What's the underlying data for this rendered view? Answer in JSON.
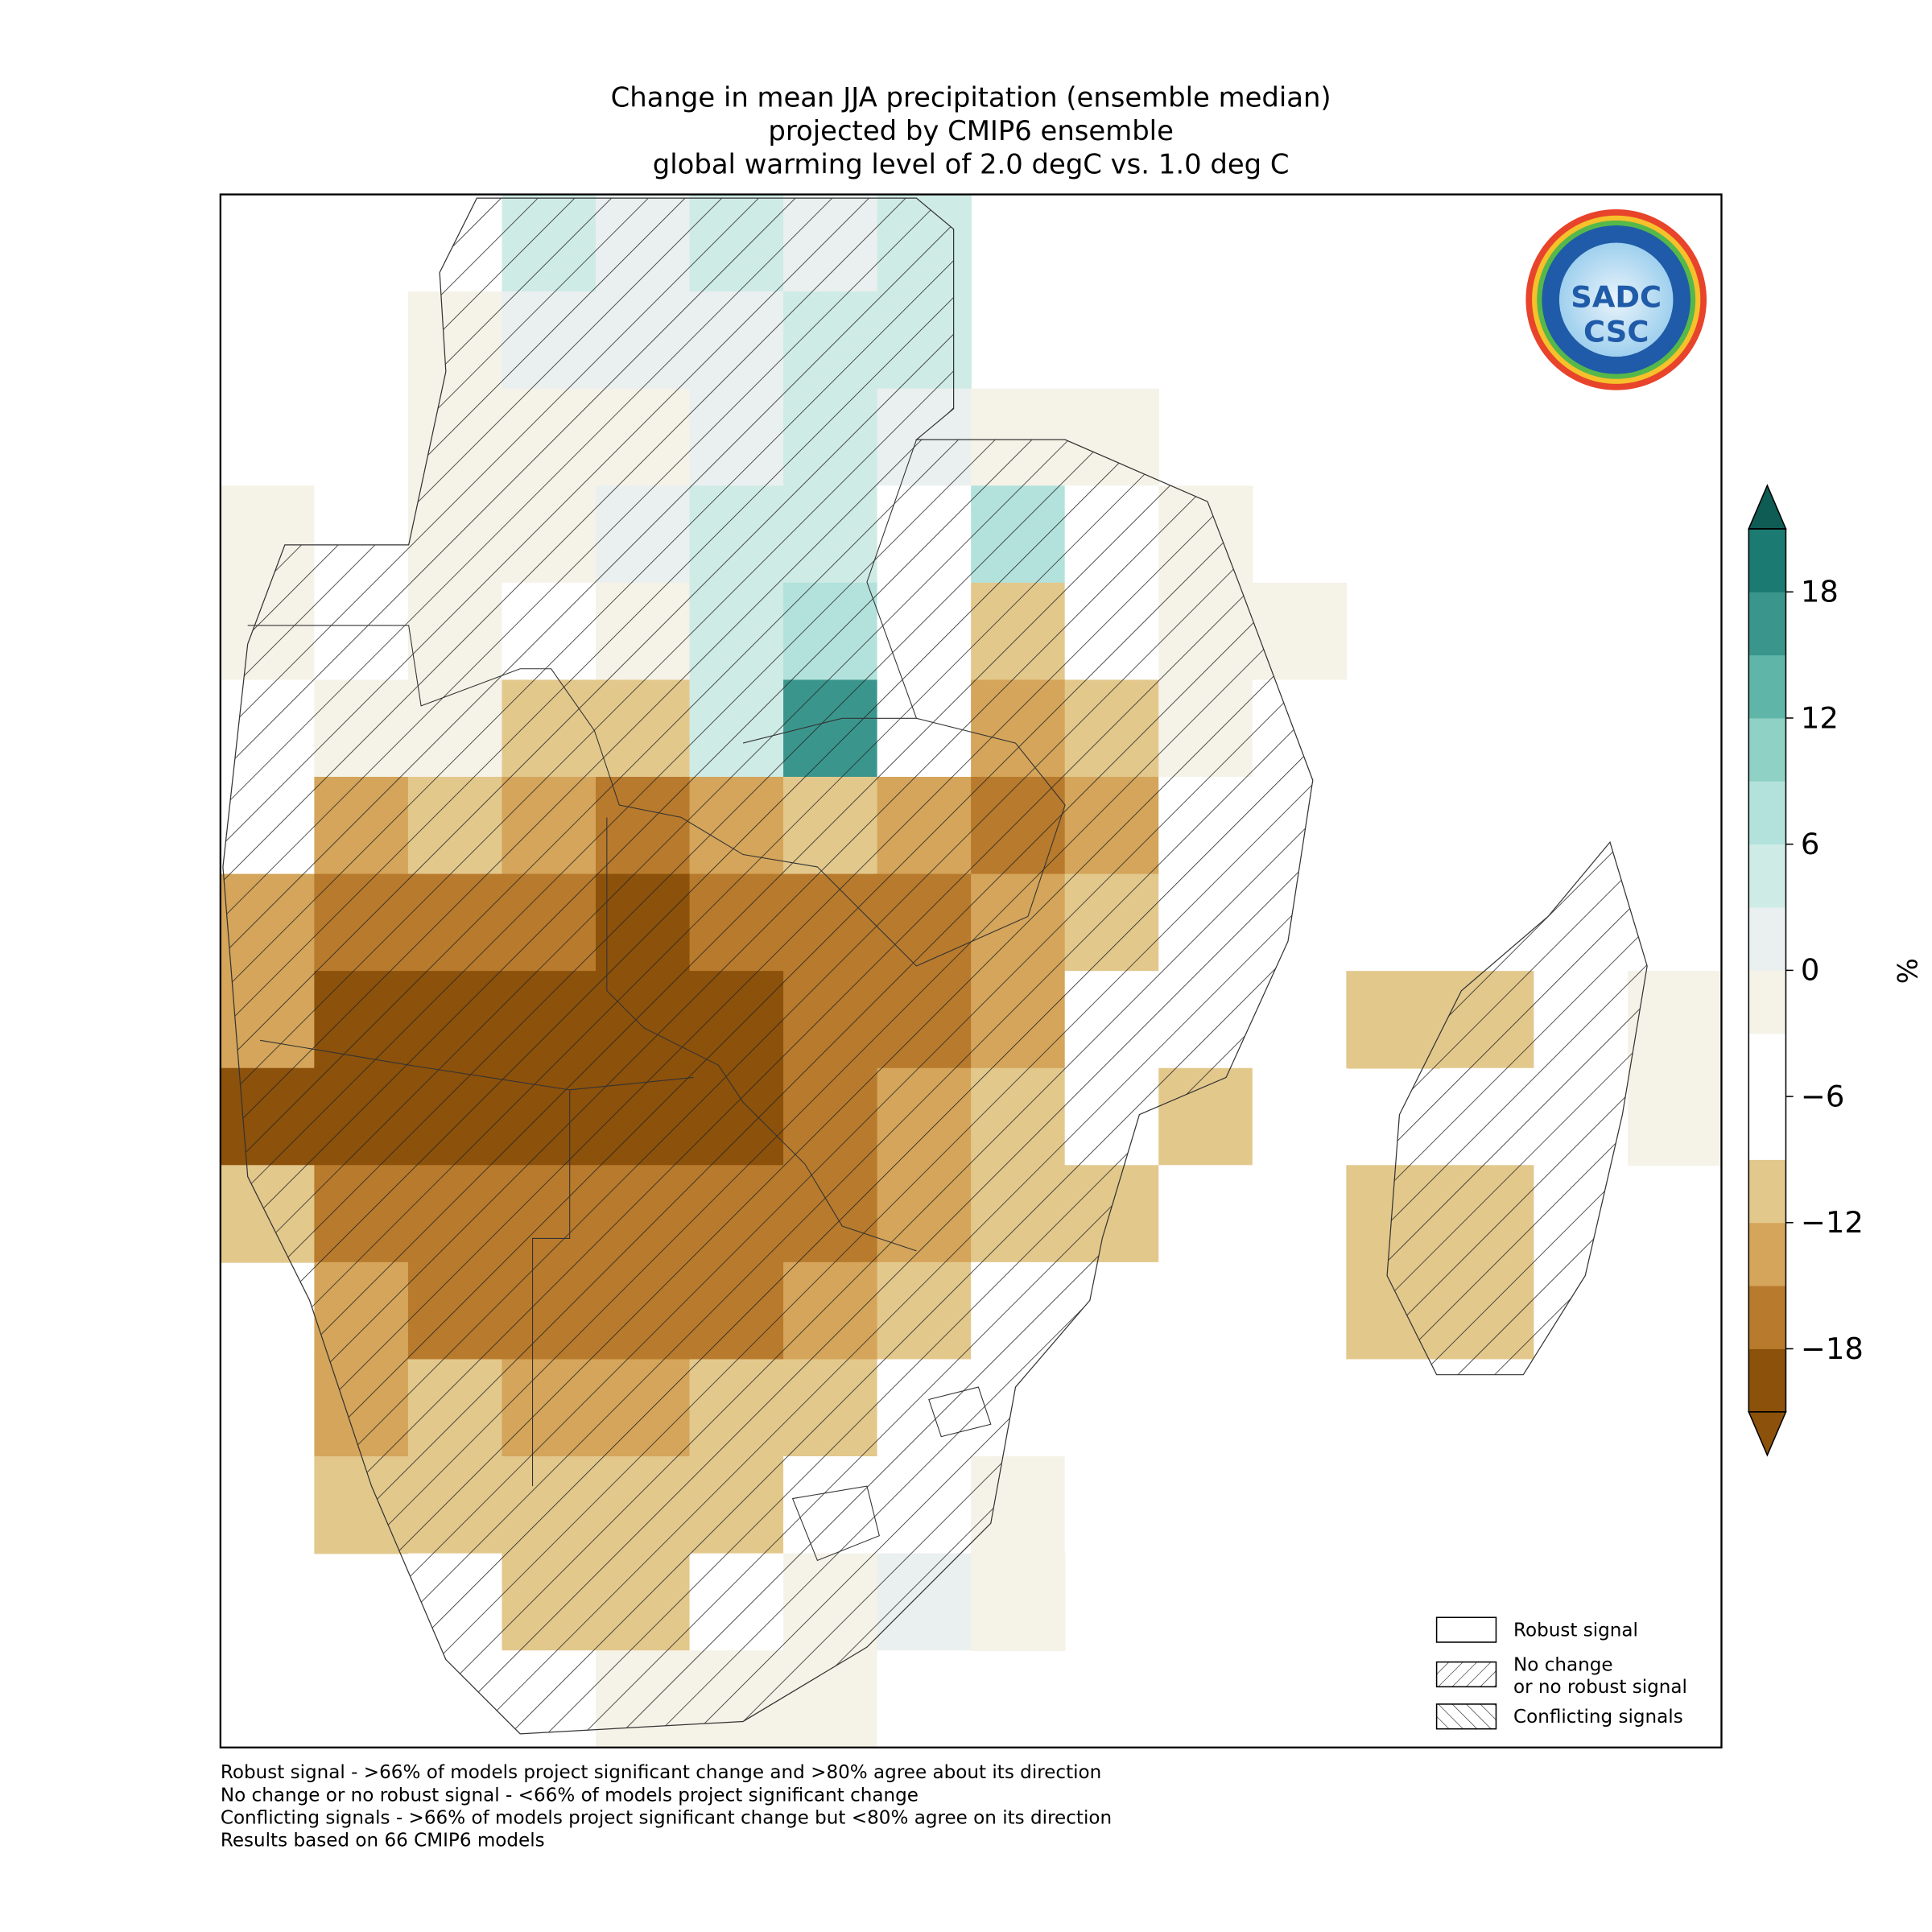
{
  "chart_data": {
    "type": "heatmap",
    "title": [
      "Change in mean JJA precipitation (ensemble median)",
      "projected by CMIP6 ensemble",
      "global warming level of 2.0 degC vs. 1.0 deg C"
    ],
    "values": [
      [
        null,
        null,
        null,
        3,
        1,
        3,
        2,
        4,
        null,
        null,
        null,
        null,
        null,
        null,
        null,
        null
      ],
      [
        null,
        null,
        -1,
        2,
        1,
        2,
        3,
        4,
        null,
        null,
        null,
        null,
        null,
        null,
        null,
        null
      ],
      [
        null,
        null,
        -2,
        -1,
        -2,
        2,
        3,
        1,
        -3,
        -3,
        null,
        null,
        null,
        null,
        null,
        null
      ],
      [
        -2,
        -4,
        -1,
        -2,
        2,
        4,
        3,
        -4,
        6,
        -4,
        -2,
        null,
        null,
        null,
        null,
        null
      ],
      [
        -2,
        -4,
        -3,
        -4,
        -1,
        5,
        6,
        -4,
        -12,
        -4,
        -2,
        -3,
        null,
        null,
        null,
        null
      ],
      [
        -4,
        -3,
        -3,
        -12,
        -10,
        3,
        15,
        -4,
        -13,
        -12,
        -2,
        -4,
        null,
        null,
        null,
        null
      ],
      [
        -4,
        -13,
        -12,
        -15,
        -16,
        -15,
        -10,
        -14,
        -18,
        -13,
        -4,
        -4,
        null,
        null,
        null,
        null
      ],
      [
        -13,
        -16,
        -18,
        -17,
        -19,
        -18,
        -16,
        -17,
        -15,
        -12,
        -4,
        -4,
        null,
        null,
        -4,
        null
      ],
      [
        -15,
        -19,
        -19,
        -20,
        -20,
        -19,
        -18,
        -18,
        -14,
        -4,
        -4,
        -4,
        -12,
        -12,
        -4,
        -2
      ],
      [
        -19,
        -20,
        -20,
        -20,
        -19,
        -20,
        -18,
        -15,
        -12,
        -4,
        -12,
        -4,
        null,
        -4,
        -4,
        -2
      ],
      [
        -12,
        -18,
        -17,
        -16,
        -18,
        -18,
        -16,
        -13,
        -12,
        -12,
        -4,
        null,
        -12,
        -12,
        -4,
        null
      ],
      [
        null,
        -13,
        -17,
        -18,
        -16,
        -17,
        -14,
        -11,
        -4,
        -4,
        -4,
        null,
        -12,
        -12,
        -4,
        null
      ],
      [
        null,
        -13,
        -12,
        -13,
        -14,
        -12,
        -12,
        -4,
        -4,
        -4,
        null,
        null,
        -4,
        -4,
        null,
        null
      ],
      [
        null,
        -12,
        -10,
        -12,
        -10,
        -10,
        -4,
        -4,
        -3,
        -4,
        null,
        null,
        null,
        null,
        null,
        null
      ],
      [
        null,
        null,
        -9,
        -10,
        -11,
        -4,
        -2,
        1,
        -3,
        null,
        null,
        null,
        null,
        null,
        null,
        null
      ],
      [
        null,
        null,
        -4,
        -4,
        -3,
        -3,
        -2,
        -4,
        null,
        null,
        null,
        null,
        null,
        null,
        null,
        null
      ]
    ],
    "colorbar": {
      "label": "%",
      "lim": [
        -21,
        21
      ],
      "ticks": [
        18,
        12,
        6,
        0,
        {
          "value": -6,
          "label": "−6"
        },
        {
          "value": -12,
          "label": "−12"
        },
        {
          "value": -18,
          "label": "−18"
        }
      ],
      "colors": [
        "#8c510a",
        "#b87a2c",
        "#d4a55a",
        "#e3c88c",
        "#ffffff",
        "#ffffff",
        "#f5f2e8",
        "#eaf0ef",
        "#cfebe6",
        "#b3e2dc",
        "#8fd1c4",
        "#5fb5a8",
        "#3a968c",
        "#1b7a71"
      ],
      "under": "#8c510a",
      "over": "#0f5c55"
    },
    "legend": [
      "Robust signal",
      "No change\nor no robust signal",
      "Conflicting signals"
    ],
    "logo": [
      "SADC",
      "CSC"
    ],
    "footnotes": [
      "Robust signal - >66% of models project significant change and >80% agree about its direction",
      "No change or no robust signal - <66% of models project significant change",
      "Conflicting signals - >66% of models project significant change but <80% agree on its direction",
      "Results based on 66 CMIP6 models"
    ]
  }
}
